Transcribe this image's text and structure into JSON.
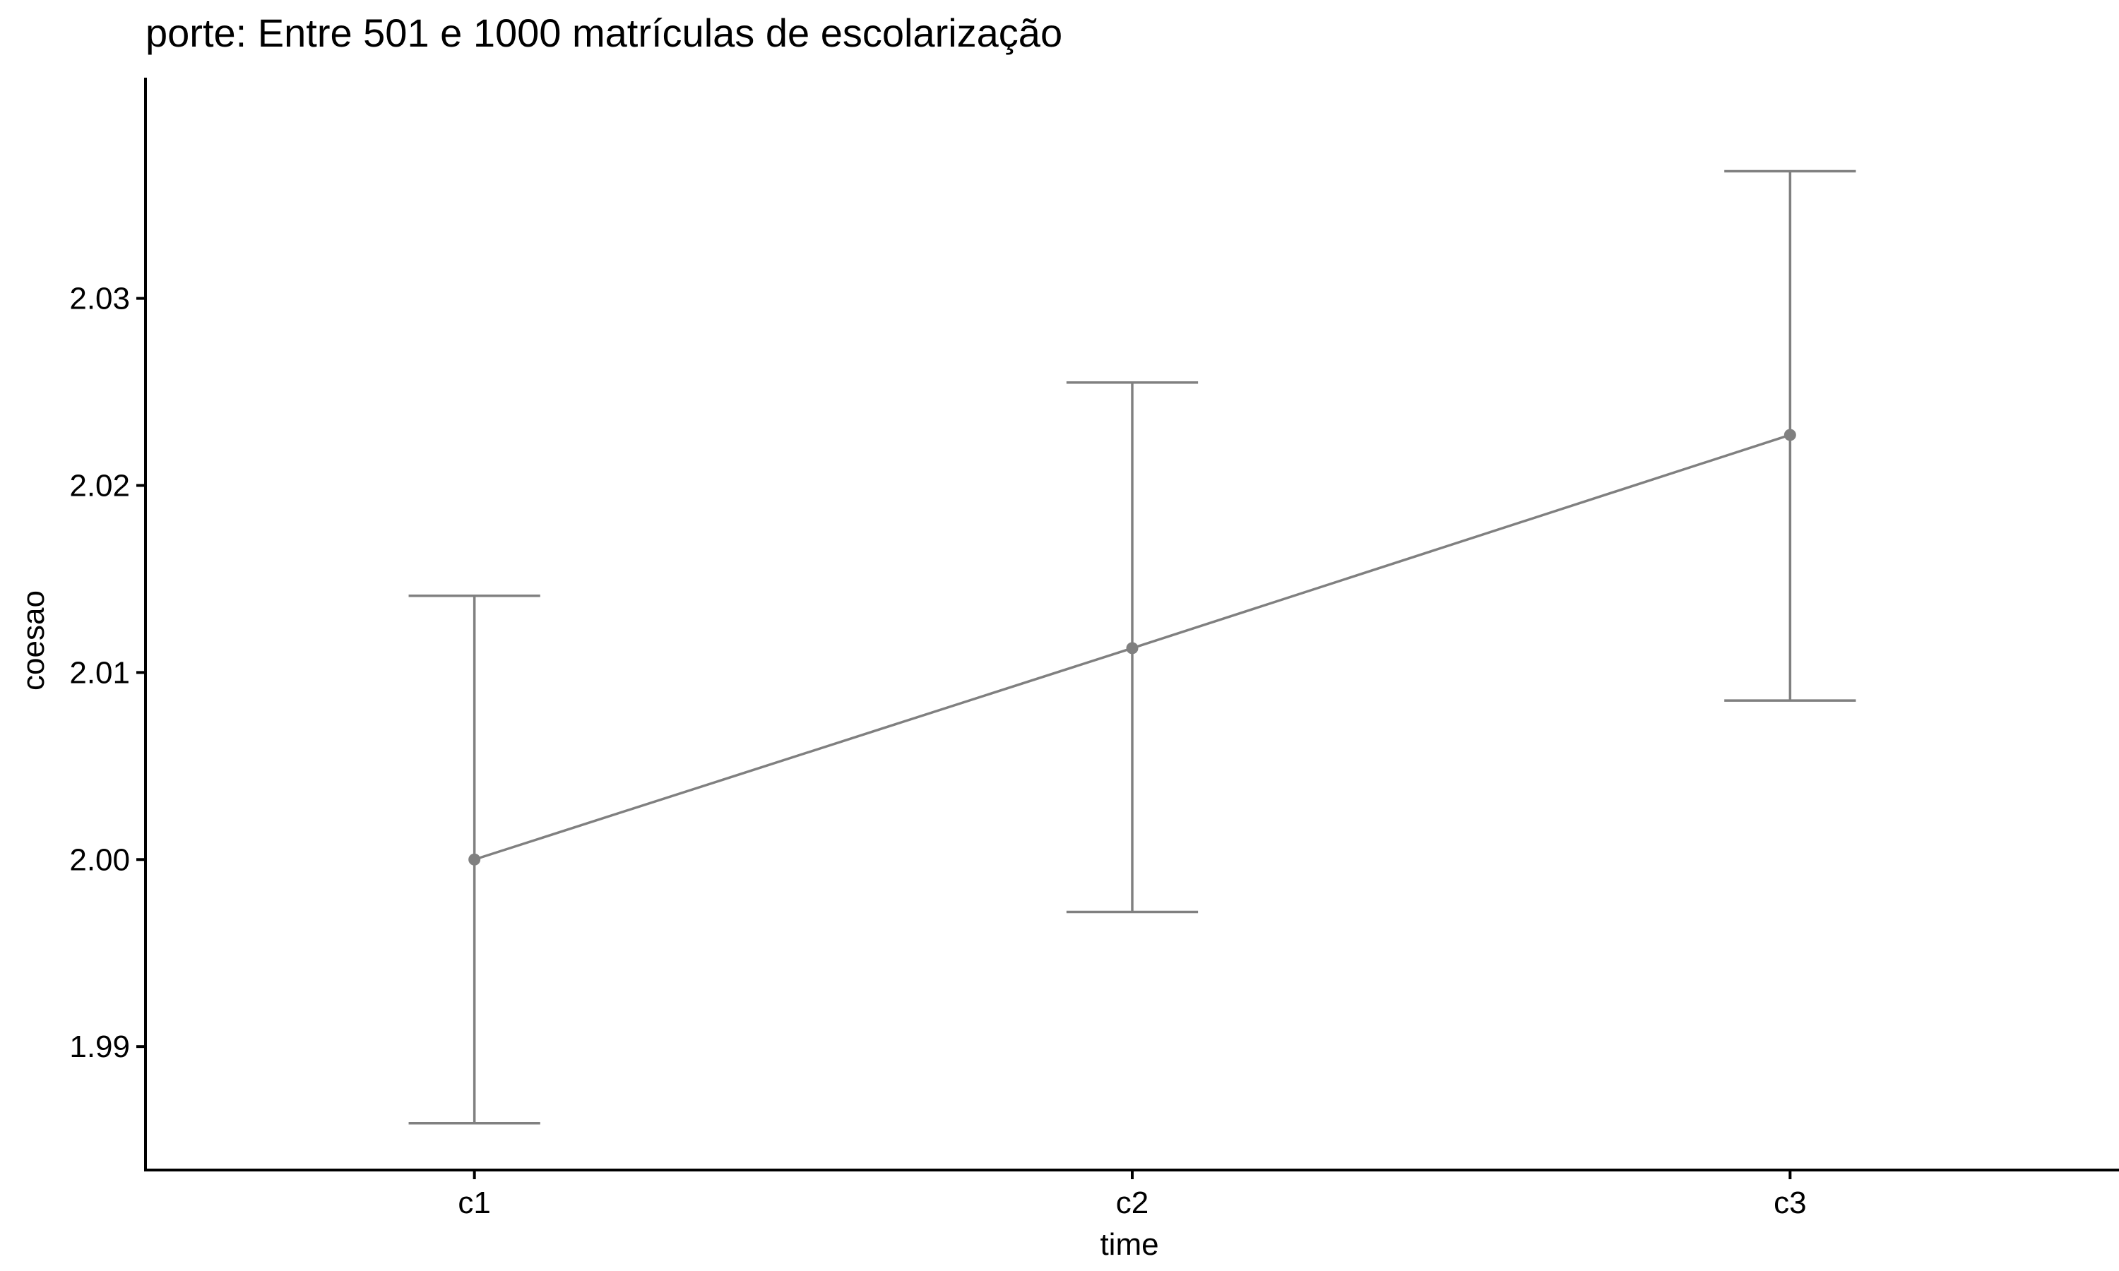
{
  "chart_data": {
    "type": "line",
    "title": "porte: Entre 501 e 1000 matrículas de escolarização",
    "xlabel": "time",
    "ylabel": "coesao",
    "categories": [
      "c1",
      "c2",
      "c3"
    ],
    "series": [
      {
        "values": [
          2.0,
          2.0113,
          2.0227
        ],
        "error_low": [
          1.9859,
          1.9972,
          2.0085
        ],
        "error_high": [
          2.0141,
          2.0255,
          2.0368
        ],
        "color": "#808080"
      }
    ],
    "yticks": [
      1.99,
      2.0,
      2.01,
      2.02,
      2.03
    ],
    "ytick_labels": [
      "1.99",
      "2.00",
      "2.01",
      "2.02",
      "2.03"
    ],
    "ylim": [
      1.9834,
      2.0418
    ],
    "grid": false,
    "axis_color": "#000000"
  }
}
